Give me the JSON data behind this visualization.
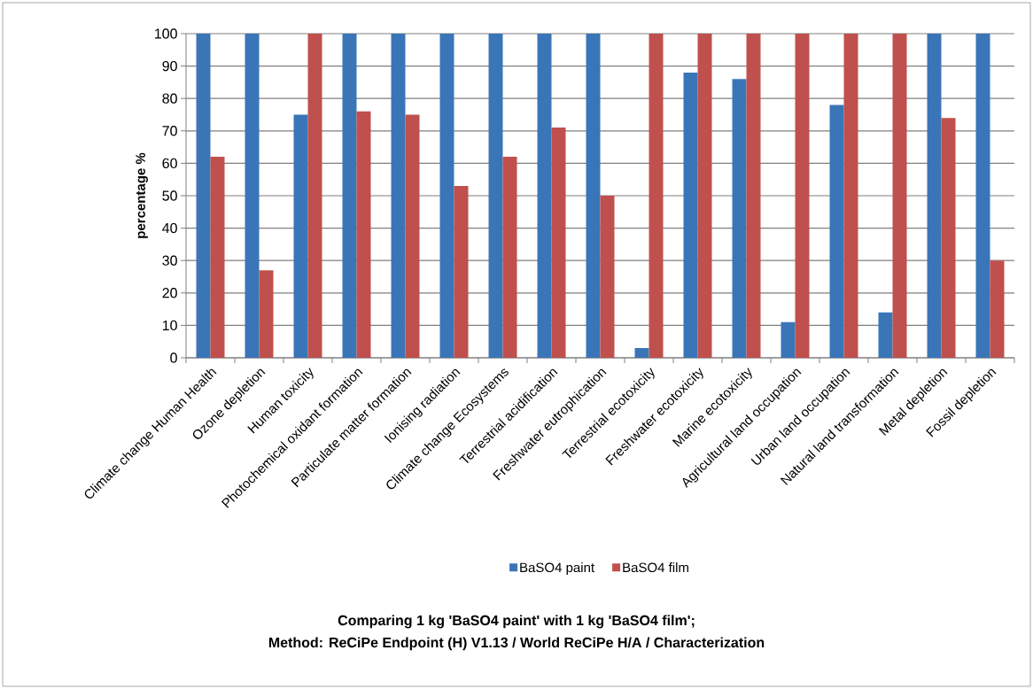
{
  "chart_data": {
    "type": "bar",
    "title": "Comparing 1 kg 'BaSO4 paint' with 1 kg 'BaSO4 film';",
    "subtitle": "Method: ReCiPe Endpoint (H) V1.13 / World ReCiPe H/A / Characterization",
    "ylabel": "percentage %",
    "categories": [
      "Climate change Human Health",
      "Ozone depletion",
      "Human toxicity",
      "Photochemical oxidant formation",
      "Particulate matter formation",
      "Ionising radiation",
      "Climate change Ecosystems",
      "Terrestrial acidification",
      "Freshwater eutrophication",
      "Terrestrial ecotoxicity",
      "Freshwater ecotoxicity",
      "Marine ecotoxicity",
      "Agricultural land occupation",
      "Urban land occupation",
      "Natural land transformation",
      "Metal depletion",
      "Fossil depletion"
    ],
    "series": [
      {
        "name": "BaSO4 paint",
        "color": "#3a75b8",
        "values": [
          100,
          100,
          75,
          100,
          100,
          100,
          100,
          100,
          100,
          3,
          88,
          86,
          11,
          78,
          14,
          100,
          100
        ]
      },
      {
        "name": "BaSO4 film",
        "color": "#c0504d",
        "values": [
          62,
          27,
          100,
          76,
          75,
          53,
          62,
          71,
          50,
          100,
          100,
          100,
          100,
          100,
          100,
          74,
          30
        ]
      }
    ],
    "ylim": [
      0,
      100
    ],
    "yticks": [
      0,
      10,
      20,
      30,
      40,
      50,
      60,
      70,
      80,
      90,
      100
    ],
    "grid": "y",
    "legend": "bottom"
  }
}
